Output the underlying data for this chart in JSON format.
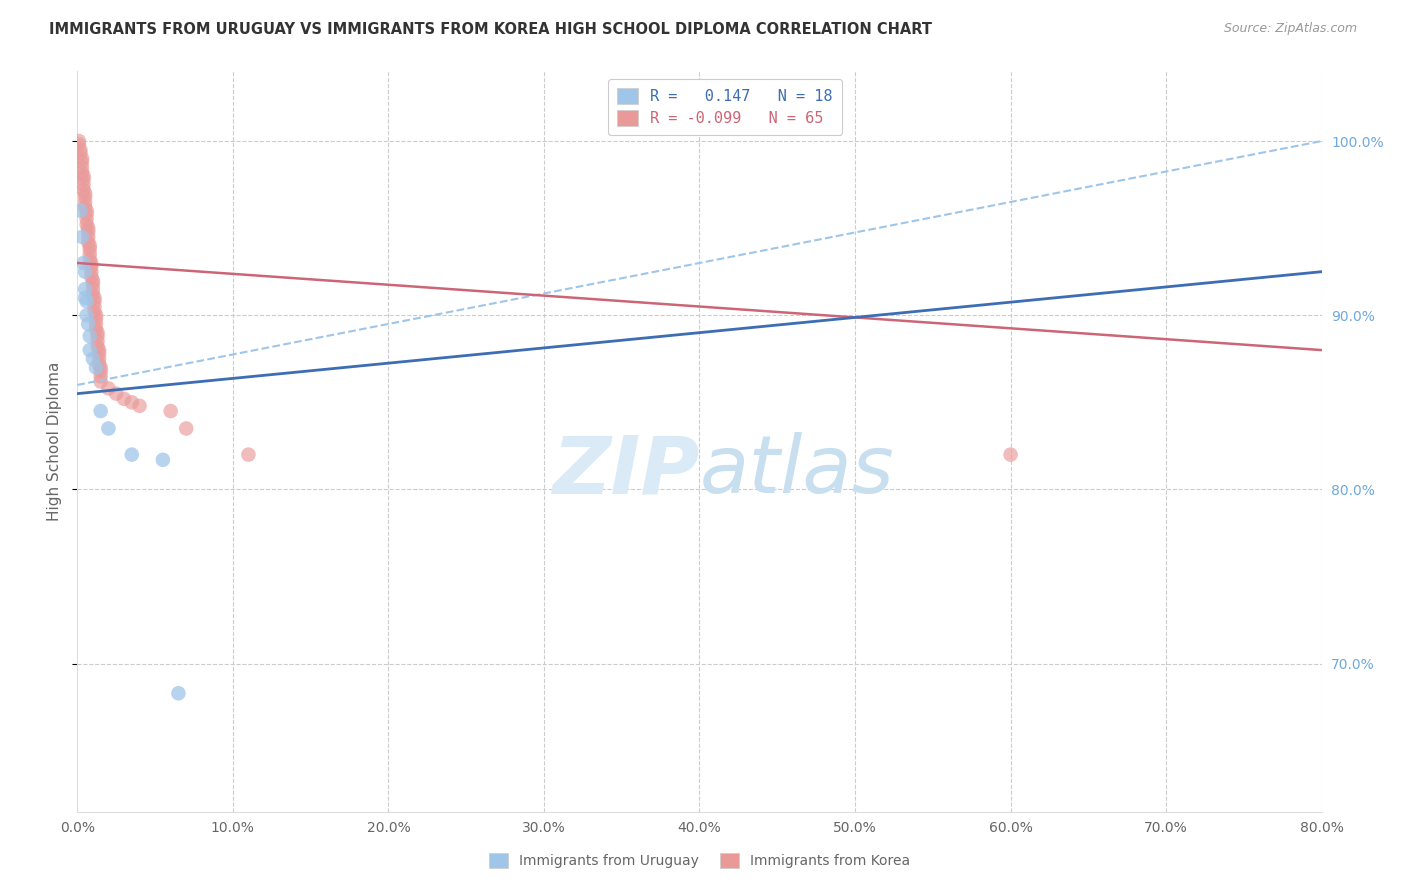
{
  "title": "IMMIGRANTS FROM URUGUAY VS IMMIGRANTS FROM KOREA HIGH SCHOOL DIPLOMA CORRELATION CHART",
  "source": "Source: ZipAtlas.com",
  "ylabel": "High School Diploma",
  "y_ticks_values": [
    1.0,
    0.9,
    0.8,
    0.7
  ],
  "y_ticks_right": [
    "100.0%",
    "90.0%",
    "80.0%",
    "70.0%"
  ],
  "xlim": [
    0.0,
    0.8
  ],
  "ylim": [
    0.615,
    1.04
  ],
  "x_ticks": [
    0.0,
    0.1,
    0.2,
    0.3,
    0.4,
    0.5,
    0.6,
    0.7,
    0.8
  ],
  "legend_label_uruguay": "Immigrants from Uruguay",
  "legend_label_korea": "Immigrants from Korea",
  "R_uruguay": 0.147,
  "N_uruguay": 18,
  "R_korea": -0.099,
  "N_korea": 65,
  "color_uruguay": "#9fc5e8",
  "color_korea": "#ea9999",
  "color_line_uruguay": "#3d6eb4",
  "color_line_korea": "#cc6677",
  "color_dashed_line": "#9fc5e8",
  "watermark_color": "#daeaf7",
  "background_color": "#ffffff",
  "grid_color": "#cccccc",
  "title_color": "#333333",
  "right_axis_color": "#6fa8dc",
  "scatter_uruguay": [
    [
      0.002,
      0.96
    ],
    [
      0.003,
      0.945
    ],
    [
      0.004,
      0.93
    ],
    [
      0.005,
      0.925
    ],
    [
      0.005,
      0.915
    ],
    [
      0.005,
      0.91
    ],
    [
      0.006,
      0.908
    ],
    [
      0.006,
      0.9
    ],
    [
      0.007,
      0.895
    ],
    [
      0.008,
      0.888
    ],
    [
      0.008,
      0.88
    ],
    [
      0.01,
      0.875
    ],
    [
      0.012,
      0.87
    ],
    [
      0.015,
      0.845
    ],
    [
      0.02,
      0.835
    ],
    [
      0.035,
      0.82
    ],
    [
      0.055,
      0.817
    ],
    [
      0.065,
      0.683
    ]
  ],
  "scatter_korea": [
    [
      0.001,
      1.0
    ],
    [
      0.001,
      0.998
    ],
    [
      0.002,
      0.995
    ],
    [
      0.002,
      0.993
    ],
    [
      0.003,
      0.99
    ],
    [
      0.003,
      0.988
    ],
    [
      0.003,
      0.985
    ],
    [
      0.003,
      0.982
    ],
    [
      0.004,
      0.98
    ],
    [
      0.004,
      0.978
    ],
    [
      0.004,
      0.975
    ],
    [
      0.004,
      0.972
    ],
    [
      0.005,
      0.97
    ],
    [
      0.005,
      0.968
    ],
    [
      0.005,
      0.965
    ],
    [
      0.005,
      0.962
    ],
    [
      0.006,
      0.96
    ],
    [
      0.006,
      0.958
    ],
    [
      0.006,
      0.955
    ],
    [
      0.006,
      0.952
    ],
    [
      0.007,
      0.95
    ],
    [
      0.007,
      0.948
    ],
    [
      0.007,
      0.945
    ],
    [
      0.007,
      0.942
    ],
    [
      0.008,
      0.94
    ],
    [
      0.008,
      0.938
    ],
    [
      0.008,
      0.935
    ],
    [
      0.008,
      0.932
    ],
    [
      0.009,
      0.93
    ],
    [
      0.009,
      0.928
    ],
    [
      0.009,
      0.925
    ],
    [
      0.009,
      0.922
    ],
    [
      0.01,
      0.92
    ],
    [
      0.01,
      0.918
    ],
    [
      0.01,
      0.915
    ],
    [
      0.01,
      0.912
    ],
    [
      0.011,
      0.91
    ],
    [
      0.011,
      0.908
    ],
    [
      0.011,
      0.905
    ],
    [
      0.011,
      0.902
    ],
    [
      0.012,
      0.9
    ],
    [
      0.012,
      0.898
    ],
    [
      0.012,
      0.895
    ],
    [
      0.012,
      0.892
    ],
    [
      0.013,
      0.89
    ],
    [
      0.013,
      0.888
    ],
    [
      0.013,
      0.885
    ],
    [
      0.013,
      0.882
    ],
    [
      0.014,
      0.88
    ],
    [
      0.014,
      0.878
    ],
    [
      0.014,
      0.875
    ],
    [
      0.014,
      0.872
    ],
    [
      0.015,
      0.87
    ],
    [
      0.015,
      0.868
    ],
    [
      0.015,
      0.865
    ],
    [
      0.015,
      0.862
    ],
    [
      0.02,
      0.858
    ],
    [
      0.025,
      0.855
    ],
    [
      0.03,
      0.852
    ],
    [
      0.035,
      0.85
    ],
    [
      0.04,
      0.848
    ],
    [
      0.06,
      0.845
    ],
    [
      0.07,
      0.835
    ],
    [
      0.11,
      0.82
    ],
    [
      0.6,
      0.82
    ]
  ],
  "reg_line_uruguay_y0": 0.855,
  "reg_line_uruguay_y1": 0.925,
  "reg_line_korea_y0": 0.93,
  "reg_line_korea_y1": 0.88,
  "dashed_line_y0": 0.86,
  "dashed_line_y1": 1.0
}
